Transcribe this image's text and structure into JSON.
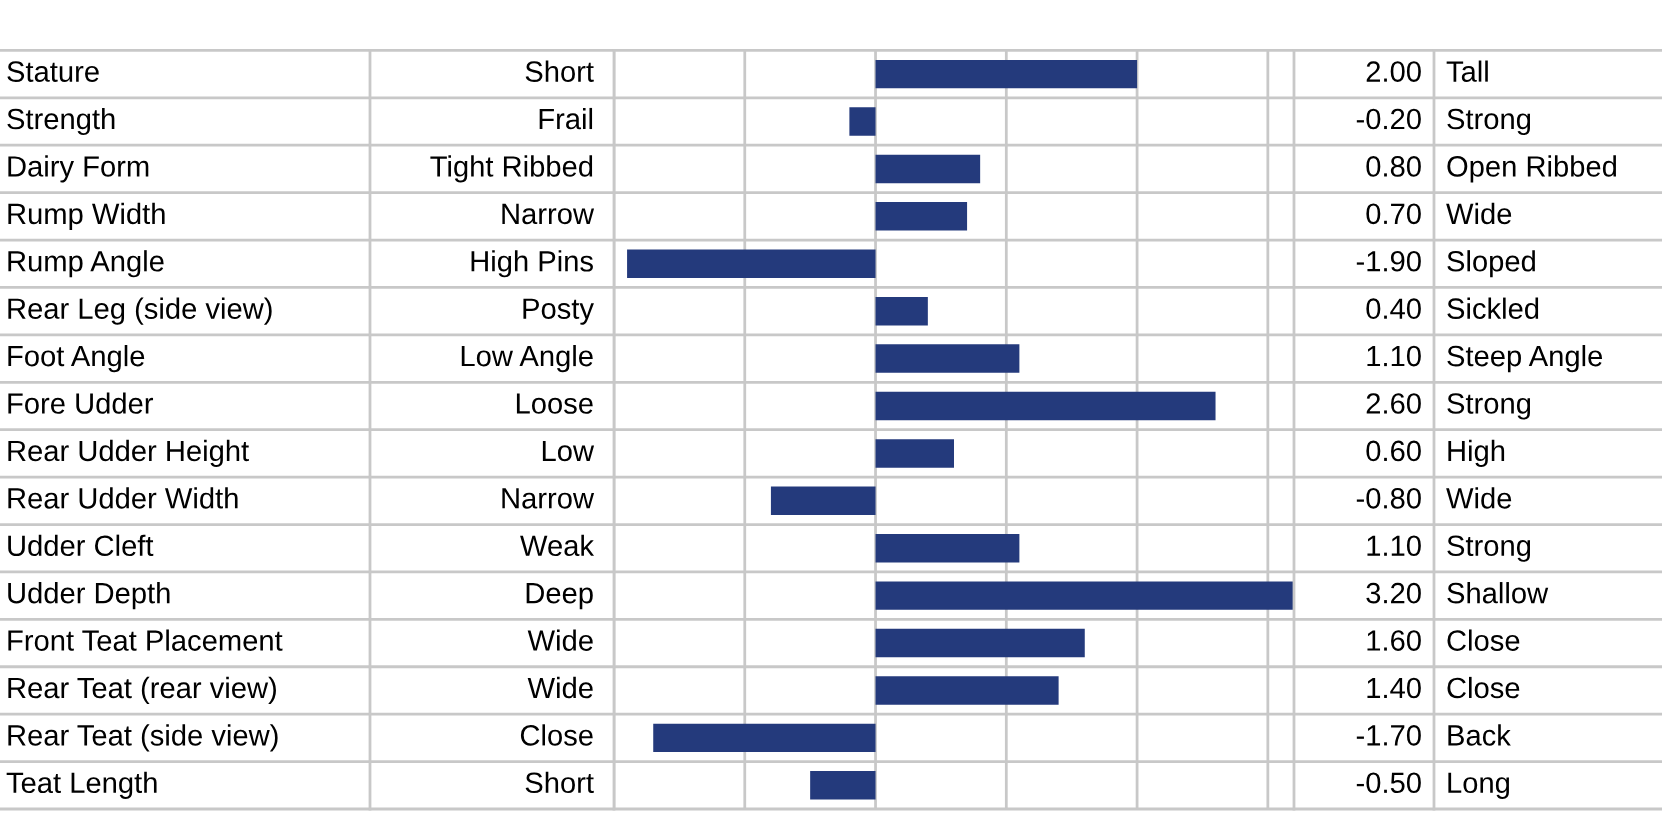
{
  "chart_data": {
    "type": "bar",
    "orientation": "horizontal",
    "categories": [
      "Stature",
      "Strength",
      "Dairy Form",
      "Rump Width",
      "Rump Angle",
      "Rear Leg (side view)",
      "Foot Angle",
      "Fore Udder",
      "Rear Udder Height",
      "Rear Udder Width",
      "Udder Cleft",
      "Udder Depth",
      "Front Teat Placement",
      "Rear Teat (rear view)",
      "Rear Teat (side view)",
      "Teat Length"
    ],
    "values": [
      2.0,
      -0.2,
      0.8,
      0.7,
      -1.9,
      0.4,
      1.1,
      2.6,
      0.6,
      -0.8,
      1.1,
      3.2,
      1.6,
      1.4,
      -1.7,
      -0.5
    ],
    "value_labels": [
      "2.00",
      "-0.20",
      "0.80",
      "0.70",
      "-1.90",
      "0.40",
      "1.10",
      "2.60",
      "0.60",
      "-0.80",
      "1.10",
      "3.20",
      "1.60",
      "1.40",
      "-1.70",
      "-0.50"
    ],
    "annotations": [
      "Short",
      "Frail",
      "Tight Ribbed",
      "Narrow",
      "High Pins",
      "Posty",
      "Low Angle",
      "Loose",
      "Low",
      "Narrow",
      "Weak",
      "Deep",
      "Wide",
      "Wide",
      "Close",
      "Short"
    ],
    "y2_categories": [
      "Tall",
      "Strong",
      "Open Ribbed",
      "Wide",
      "Sloped",
      "Sickled",
      "Steep Angle",
      "Strong",
      "High",
      "Wide",
      "Strong",
      "Shallow",
      "Close",
      "Close",
      "Back",
      "Long"
    ],
    "color": "#243a7c",
    "xlim": [
      -2,
      3.2
    ],
    "xticks": [
      {
        "value": -2,
        "label": null
      },
      {
        "value": -1,
        "label": null
      },
      {
        "value": 0,
        "label": null
      },
      {
        "value": 1,
        "label": null
      },
      {
        "value": 2,
        "label": null
      },
      {
        "value": 3,
        "label": null
      }
    ],
    "grid": "x"
  }
}
